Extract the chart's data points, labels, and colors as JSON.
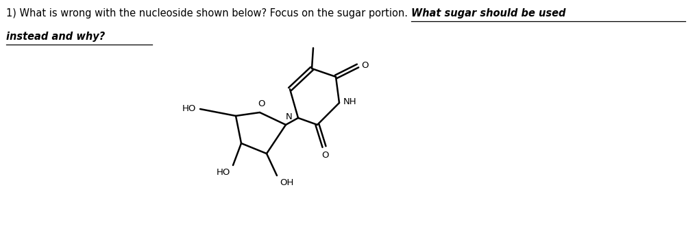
{
  "bg_color": "#ffffff",
  "line_color": "#000000",
  "fig_width": 10.17,
  "fig_height": 3.34,
  "dpi": 100,
  "font_size_text": 10.5,
  "font_size_atom": 9.5,
  "line_width": 1.8,
  "text_normal": "1) What is wrong with the nucleoside shown below? Focus on the sugar portion. ",
  "text_bold_italic_1": "What sugar should be used",
  "text_bold_italic_2": "instead and why?"
}
